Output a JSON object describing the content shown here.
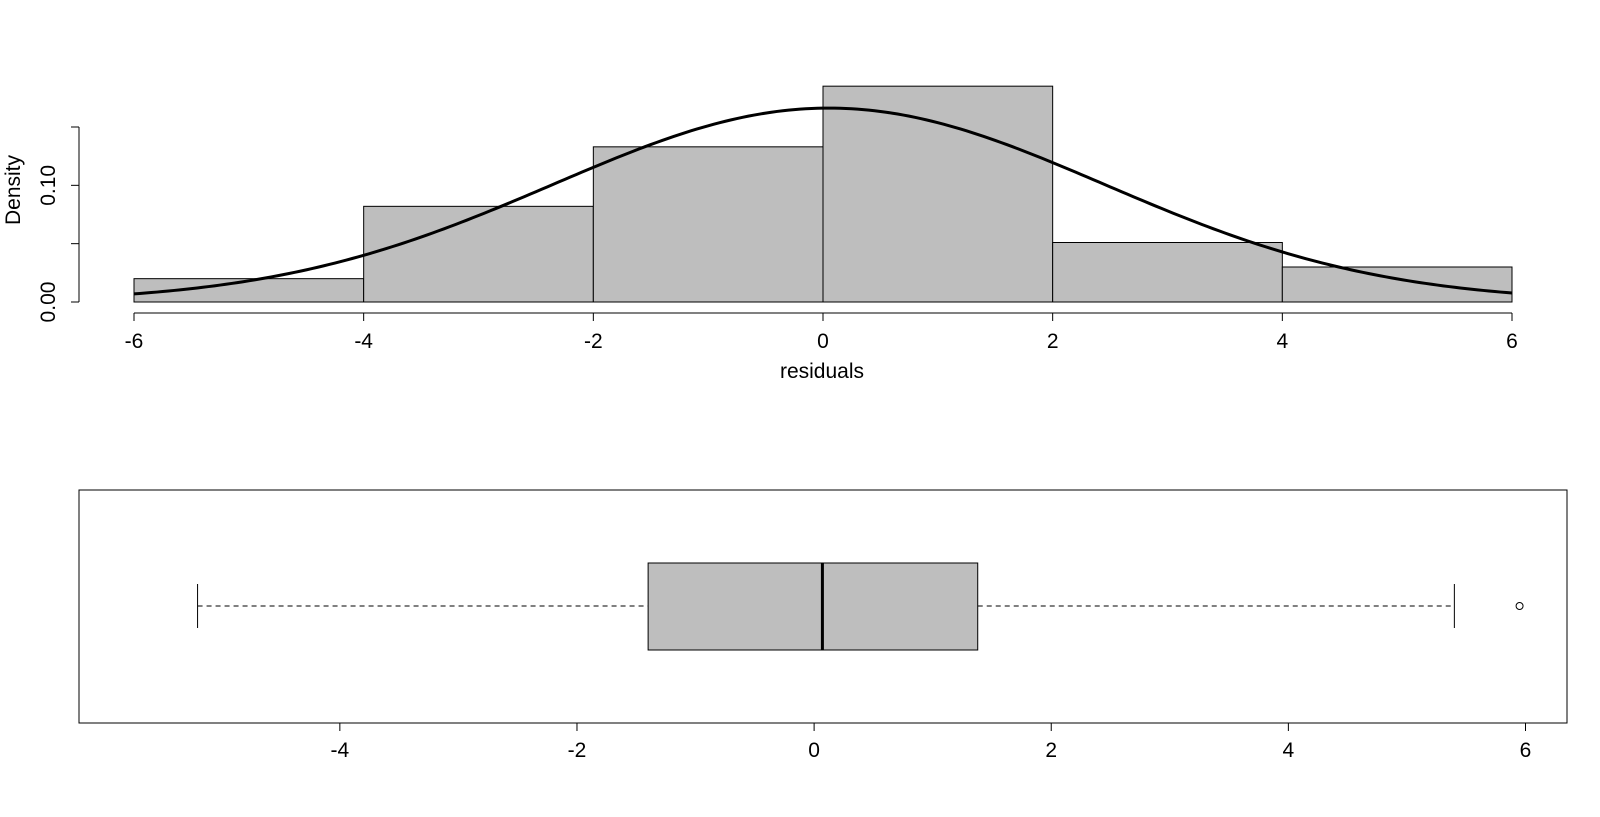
{
  "chart_data": [
    {
      "type": "histogram",
      "xlabel": "residuals",
      "ylabel": "Density",
      "xlim": [
        -6,
        6
      ],
      "ylim": [
        0,
        0.15
      ],
      "x_ticks": [
        -6,
        -4,
        -2,
        0,
        2,
        4,
        6
      ],
      "x_tick_labels": [
        "-6",
        "-4",
        "-2",
        "0",
        "2",
        "4",
        "6"
      ],
      "y_ticks": [
        0.0,
        0.05,
        0.1,
        0.15
      ],
      "y_tick_labels": [
        "0.00",
        "",
        "0.10",
        ""
      ],
      "bins": [
        {
          "from": -6,
          "to": -4,
          "density": 0.02
        },
        {
          "from": -4,
          "to": -2,
          "density": 0.082
        },
        {
          "from": -2,
          "to": 0,
          "density": 0.133
        },
        {
          "from": 0,
          "to": 2,
          "density": 0.185
        },
        {
          "from": 2,
          "to": 4,
          "density": 0.051
        },
        {
          "from": 4,
          "to": 6,
          "density": 0.03
        }
      ],
      "density_curve": {
        "type": "normal",
        "mean": 0.05,
        "sd": 2.4
      },
      "bar_color": "#bebebe",
      "line_color": "#000000"
    },
    {
      "type": "boxplot",
      "orientation": "horizontal",
      "xlim": [
        -6.2,
        6.35
      ],
      "x_ticks": [
        -4,
        -2,
        0,
        2,
        4,
        6
      ],
      "x_tick_labels": [
        "-4",
        "-2",
        "0",
        "2",
        "4",
        "6"
      ],
      "whisker_low": -5.2,
      "q1": -1.4,
      "median": 0.07,
      "q3": 1.38,
      "whisker_high": 5.4,
      "outliers": [
        5.95
      ],
      "box_color": "#bebebe"
    }
  ]
}
